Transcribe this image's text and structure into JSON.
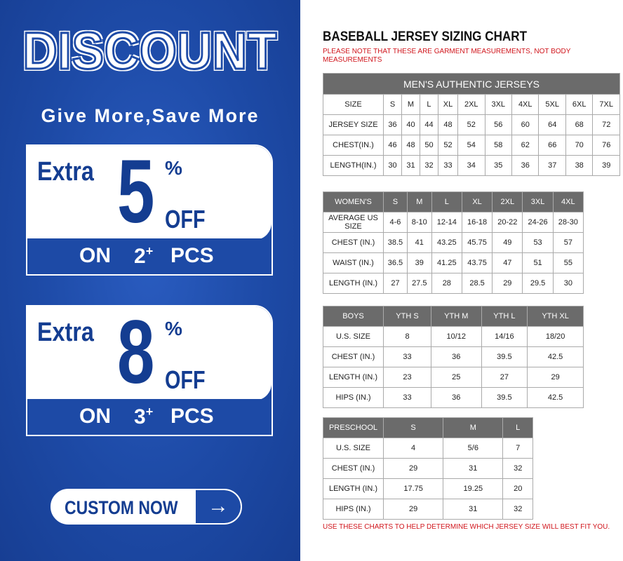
{
  "promo": {
    "headline": "DISCOUNT",
    "subheadline": "Give More,Save More",
    "offers": [
      {
        "extra": "Extra",
        "percent": "5",
        "pct_sign": "%",
        "off": "OFF",
        "on": "ON",
        "count": "2",
        "plus": "+",
        "pcs": "PCS"
      },
      {
        "extra": "Extra",
        "percent": "8",
        "pct_sign": "%",
        "off": "OFF",
        "on": "ON",
        "count": "3",
        "plus": "+",
        "pcs": "PCS"
      }
    ],
    "cta": {
      "label": "CUSTOM NOW",
      "icon": "arrow-right-icon",
      "arrow": "→"
    },
    "colors": {
      "brand_blue": "#1d4aa6",
      "dark_blue": "#143d91"
    }
  },
  "chart": {
    "title": "BASEBALL JERSEY SIZING CHART",
    "note": "PLEASE NOTE THAT THESE ARE GARMENT MEASUREMENTS, NOT BODY MEASUREMENTS",
    "footer": "USE THESE CHARTS TO HELP DETERMINE WHICH JERSEY SIZE WILL BEST FIT YOU.",
    "note_color": "#d0141b",
    "tables": [
      {
        "caption": "MEN'S AUTHENTIC JERSEYS",
        "header_gray": false,
        "rows": [
          [
            "SIZE",
            "S",
            "M",
            "L",
            "XL",
            "2XL",
            "3XL",
            "4XL",
            "5XL",
            "6XL",
            "7XL"
          ],
          [
            "JERSEY SIZE",
            "36",
            "40",
            "44",
            "48",
            "52",
            "56",
            "60",
            "64",
            "68",
            "72"
          ],
          [
            "CHEST(IN.)",
            "46",
            "48",
            "50",
            "52",
            "54",
            "58",
            "62",
            "66",
            "70",
            "76"
          ],
          [
            "LENGTH(IN.)",
            "30",
            "31",
            "32",
            "33",
            "34",
            "35",
            "36",
            "37",
            "38",
            "39"
          ]
        ]
      },
      {
        "caption": "",
        "header_gray": true,
        "rows": [
          [
            "WOMEN'S",
            "S",
            "M",
            "L",
            "XL",
            "2XL",
            "3XL",
            "4XL"
          ],
          [
            "AVERAGE US SIZE",
            "4-6",
            "8-10",
            "12-14",
            "16-18",
            "20-22",
            "24-26",
            "28-30"
          ],
          [
            "CHEST (IN.)",
            "38.5",
            "41",
            "43.25",
            "45.75",
            "49",
            "53",
            "57"
          ],
          [
            "WAIST (IN.)",
            "36.5",
            "39",
            "41.25",
            "43.75",
            "47",
            "51",
            "55"
          ],
          [
            "LENGTH (IN.)",
            "27",
            "27.5",
            "28",
            "28.5",
            "29",
            "29.5",
            "30"
          ]
        ]
      },
      {
        "caption": "",
        "header_gray": true,
        "rows": [
          [
            "BOYS",
            "YTH S",
            "YTH M",
            "YTH L",
            "YTH XL"
          ],
          [
            "U.S. SIZE",
            "8",
            "10/12",
            "14/16",
            "18/20"
          ],
          [
            "CHEST (IN.)",
            "33",
            "36",
            "39.5",
            "42.5"
          ],
          [
            "LENGTH (IN.)",
            "23",
            "25",
            "27",
            "29"
          ],
          [
            "HIPS (IN.)",
            "33",
            "36",
            "39.5",
            "42.5"
          ]
        ]
      },
      {
        "caption": "",
        "header_gray": true,
        "rows": [
          [
            "PRESCHOOL",
            "S",
            "M",
            "L"
          ],
          [
            "U.S. SIZE",
            "4",
            "5/6",
            "7"
          ],
          [
            "CHEST (IN.)",
            "29",
            "31",
            "32"
          ],
          [
            "LENGTH (IN.)",
            "17.75",
            "19.25",
            "20"
          ],
          [
            "HIPS (IN.)",
            "29",
            "31",
            "32"
          ]
        ]
      }
    ]
  }
}
